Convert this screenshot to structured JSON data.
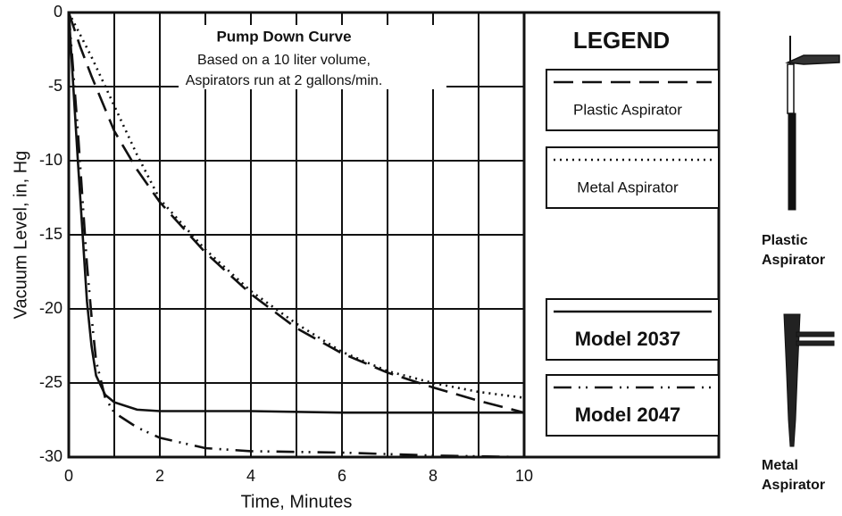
{
  "chart_data": {
    "type": "line",
    "title": "Pump Down Curve",
    "subtitle": [
      "Based on a 10 liter volume,",
      "Aspirators run at 2 gallons/min."
    ],
    "x_label": "Time, Minutes",
    "y_label": "Vacuum Level, in, Hg",
    "legend_title": "LEGEND",
    "xlim": [
      0,
      10
    ],
    "xticks": [
      0,
      2,
      4,
      6,
      8,
      10
    ],
    "xgrid": [
      1,
      3,
      5,
      7,
      9
    ],
    "ylim": [
      -30,
      0
    ],
    "yticks": [
      0,
      -5,
      -10,
      -15,
      -20,
      -25,
      -30
    ],
    "grid": true,
    "series": [
      {
        "name": "Plastic Aspirator",
        "color": "#111111",
        "dash": "dashed",
        "x": [
          0,
          0.25,
          0.5,
          1,
          1.5,
          2,
          3,
          4,
          5,
          6,
          7,
          8,
          9,
          10
        ],
        "values": [
          0,
          -2.3,
          -4.3,
          -8,
          -10.6,
          -12.8,
          -16.2,
          -19,
          -21.3,
          -23,
          -24.3,
          -25.3,
          -26.2,
          -27
        ]
      },
      {
        "name": "Metal Aspirator",
        "color": "#111111",
        "dash": "dotted",
        "x": [
          0,
          0.25,
          0.5,
          1,
          1.5,
          2,
          3,
          4,
          5,
          6,
          7,
          8,
          9,
          10
        ],
        "values": [
          0,
          -1.5,
          -3,
          -6.3,
          -9.6,
          -12.6,
          -16,
          -18.8,
          -21,
          -22.9,
          -24.2,
          -25,
          -25.6,
          -26
        ]
      },
      {
        "name": "Model 2037",
        "color": "#111111",
        "dash": "solid",
        "x": [
          0,
          0.2,
          0.4,
          0.5,
          0.6,
          0.8,
          1,
          1.5,
          2,
          4,
          6,
          8,
          10
        ],
        "values": [
          0,
          -10,
          -19.5,
          -22.5,
          -24.5,
          -25.8,
          -26.3,
          -26.8,
          -26.9,
          -26.9,
          -27,
          -27,
          -27
        ]
      },
      {
        "name": "Model 2047",
        "color": "#111111",
        "dash": "dashdot",
        "x": [
          0,
          0.2,
          0.4,
          0.5,
          0.6,
          0.8,
          1,
          1.5,
          2,
          3,
          4,
          6,
          8,
          10
        ],
        "values": [
          0,
          -8,
          -17,
          -20.5,
          -23.5,
          -26,
          -27,
          -28,
          -28.7,
          -29.4,
          -29.6,
          -29.7,
          -29.9,
          -30
        ]
      }
    ]
  },
  "images": [
    {
      "lines": [
        "Plastic",
        "Aspirator"
      ]
    },
    {
      "lines": [
        "Metal",
        "Aspirator"
      ]
    }
  ]
}
